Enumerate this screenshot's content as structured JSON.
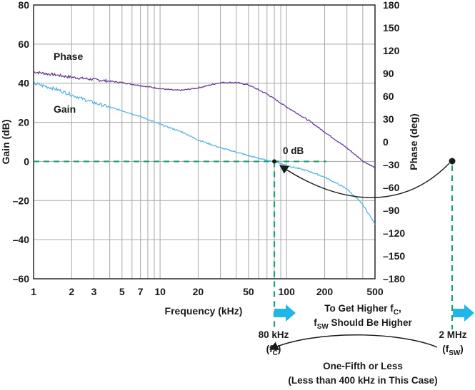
{
  "chart_data": {
    "type": "line",
    "x_scale": "log",
    "xlabel": "Frequency (kHz)",
    "ylabel_left": "Gain (dB)",
    "ylabel_right": "Phase (deg)",
    "xlim": [
      1,
      500
    ],
    "ylim_left": [
      -60,
      80
    ],
    "ylim_right": [
      -180,
      180
    ],
    "grid": true,
    "x_ticks": [
      1,
      2,
      3,
      5,
      7,
      10,
      20,
      50,
      100,
      200,
      500
    ],
    "x_tick_labels": [
      "1",
      "2",
      "3",
      "5",
      "7",
      "10",
      "20",
      "50",
      "100",
      "200",
      "500"
    ],
    "y_left_ticks": [
      80,
      60,
      40,
      20,
      0,
      -20,
      -40,
      -60
    ],
    "y_left_tick_labels": [
      "80",
      "60",
      "40",
      "20",
      "0",
      "–20",
      "–40",
      "–60"
    ],
    "y_right_ticks": [
      180,
      150,
      120,
      90,
      60,
      30,
      0,
      -30,
      -60,
      -90,
      -120,
      -150,
      -180
    ],
    "y_right_tick_labels": [
      "180",
      "150",
      "120",
      "90",
      "60",
      "30",
      "0",
      "–30",
      "–60",
      "–90",
      "–120",
      "–150",
      "–180"
    ],
    "series": [
      {
        "name": "Phase",
        "axis": "right",
        "color": "#6a3d9a",
        "x": [
          1,
          1.5,
          2,
          3,
          5,
          7,
          10,
          13,
          15,
          20,
          30,
          40,
          50,
          70,
          100,
          150,
          200,
          300,
          400,
          500
        ],
        "y": [
          92,
          88,
          85,
          82,
          78,
          74,
          70,
          68,
          68,
          71,
          78,
          78,
          75,
          63,
          46,
          28,
          13,
          -8,
          -25,
          -34
        ]
      },
      {
        "name": "Gain",
        "axis": "left",
        "color": "#5ab4e5",
        "x": [
          1,
          1.5,
          2,
          3,
          5,
          7,
          10,
          15,
          20,
          30,
          50,
          70,
          80,
          100,
          150,
          200,
          300,
          400,
          500
        ],
        "y": [
          40,
          37,
          34,
          30,
          26,
          23,
          19,
          15,
          11,
          7,
          3,
          0.5,
          0,
          -2,
          -5,
          -8,
          -14,
          -22,
          -32
        ]
      }
    ],
    "annotations": {
      "zero_db": "0 dB",
      "fc_value": "80 kHz",
      "fc_symbol": "f",
      "fc_subscript": "C",
      "fsw_value": "2 MHz",
      "fsw_symbol": "f",
      "fsw_subscript": "SW",
      "note1_pre": "To Get Higher f",
      "note1_sub": "C",
      "note1_post": ",",
      "note2_pre": "f",
      "note2_sub": "SW",
      "note2_post": " Should Be Higher",
      "bottom_line1": "One-Fifth or Less",
      "bottom_line2": "(Less than 400 kHz in This Case)"
    },
    "colors": {
      "marker_green": "#1aa36b",
      "arrow_blue": "#21b6e8",
      "grid": "#a8a8a8"
    }
  }
}
